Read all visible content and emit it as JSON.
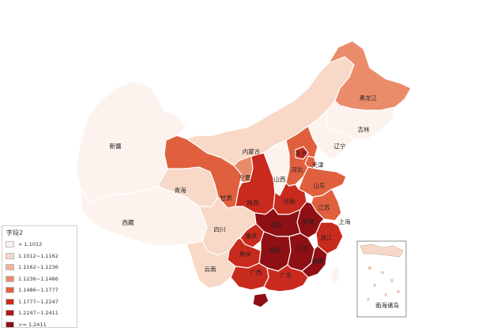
{
  "colors": {
    "c0": "#fdf3ee",
    "c1": "#f8d8c6",
    "c2": "#f1b394",
    "c3": "#ea8c6a",
    "c4": "#e0603e",
    "c5": "#c92a1e",
    "c6": "#8e0f14"
  },
  "legend": {
    "title": "字段2",
    "items": [
      {
        "label": "< 1.1012",
        "color": "#fdf3ee"
      },
      {
        "label": "1.1012~1.1162",
        "color": "#f8d8c6"
      },
      {
        "label": "1.1162~1.1236",
        "color": "#f1b394"
      },
      {
        "label": "1.1236~1.1486",
        "color": "#ea8c6a"
      },
      {
        "label": "1.1486~1.1777",
        "color": "#e0603e"
      },
      {
        "label": "1.1777~1.2247",
        "color": "#c92a1e"
      },
      {
        "label": "1.2247~1.2411",
        "color": "#b01a18"
      },
      {
        "label": ">= 1.2411",
        "color": "#8e0f14"
      }
    ]
  },
  "provinces": [
    {
      "id": "xinjiang",
      "name": "新疆",
      "class": 0
    },
    {
      "id": "xizang",
      "name": "西藏",
      "class": 0
    },
    {
      "id": "qinghai",
      "name": "青海",
      "class": 1
    },
    {
      "id": "gansu",
      "name": "甘肃",
      "class": 4
    },
    {
      "id": "neimenggu",
      "name": "内蒙古",
      "class": 1
    },
    {
      "id": "heilongjiang",
      "name": "黑龙江",
      "class": 3
    },
    {
      "id": "jilin",
      "name": "吉林",
      "class": 0
    },
    {
      "id": "liaoning",
      "name": "辽宁",
      "class": 0
    },
    {
      "id": "ningxia",
      "name": "宁夏",
      "class": 3
    },
    {
      "id": "shaanxi",
      "name": "陕西",
      "class": 5
    },
    {
      "id": "shanxi",
      "name": "山西",
      "class": 0
    },
    {
      "id": "hebei",
      "name": "河北",
      "class": 4
    },
    {
      "id": "beijing",
      "name": "北京",
      "class": 5
    },
    {
      "id": "tianjin",
      "name": "天津",
      "class": 4
    },
    {
      "id": "shandong",
      "name": "山东",
      "class": 4
    },
    {
      "id": "henan",
      "name": "河南",
      "class": 5
    },
    {
      "id": "jiangsu",
      "name": "江苏",
      "class": 4
    },
    {
      "id": "shanghai",
      "name": "上海",
      "class": 0
    },
    {
      "id": "zhejiang",
      "name": "浙江",
      "class": 5
    },
    {
      "id": "anhui",
      "name": "安徽",
      "class": 6
    },
    {
      "id": "hubei",
      "name": "湖北",
      "class": 6
    },
    {
      "id": "sichuan",
      "name": "四川",
      "class": 1
    },
    {
      "id": "chongqing",
      "name": "重庆",
      "class": 5
    },
    {
      "id": "guizhou",
      "name": "贵州",
      "class": 5
    },
    {
      "id": "hunan",
      "name": "湖南",
      "class": 6
    },
    {
      "id": "jiangxi",
      "name": "江西",
      "class": 6
    },
    {
      "id": "fujian",
      "name": "福建",
      "class": 6
    },
    {
      "id": "yunnan",
      "name": "云南",
      "class": 1
    },
    {
      "id": "guangxi",
      "name": "广西",
      "class": 5
    },
    {
      "id": "guangdong",
      "name": "广东",
      "class": 5
    },
    {
      "id": "hainan",
      "name": "海南",
      "class": 6
    },
    {
      "id": "taiwan",
      "name": "台湾",
      "class": 0
    }
  ],
  "inset": {
    "label": "南海诸岛"
  }
}
